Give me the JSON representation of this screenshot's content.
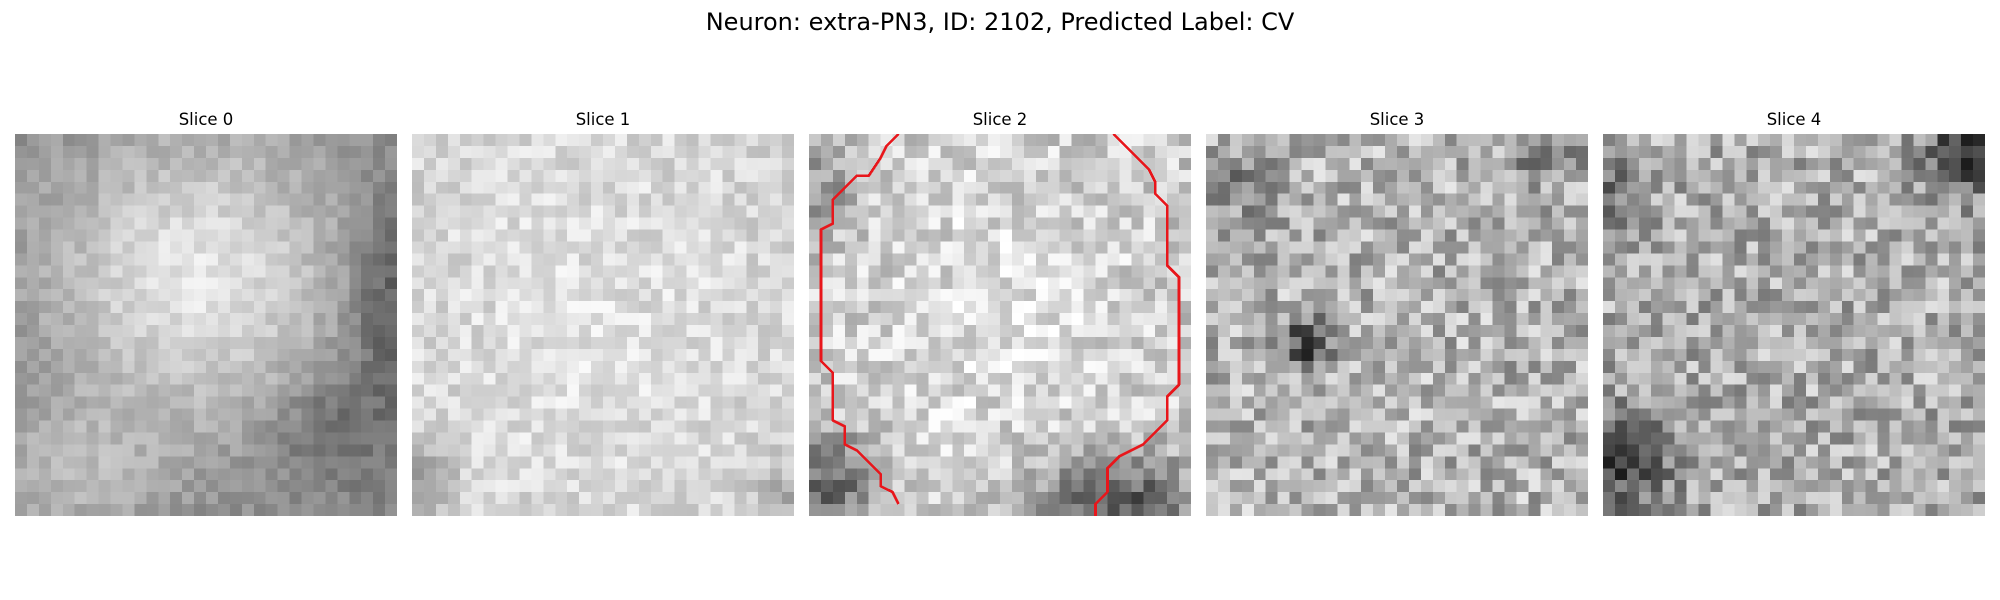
{
  "figure": {
    "title": "Neuron: extra-PN3, ID: 2102, Predicted Label: CV"
  },
  "panels": [
    {
      "title": "Slice 0"
    },
    {
      "title": "Slice 1"
    },
    {
      "title": "Slice 2"
    },
    {
      "title": "Slice 3"
    },
    {
      "title": "Slice 4"
    }
  ],
  "contour_color": "#e8161b",
  "colormap": "grayscale"
}
